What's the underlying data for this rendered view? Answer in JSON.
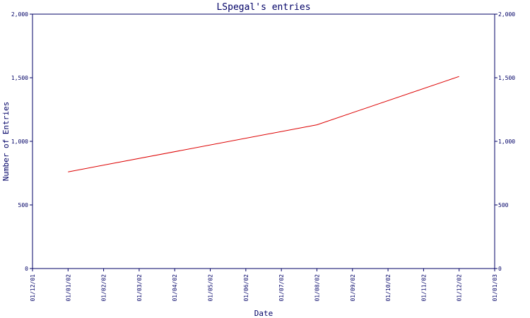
{
  "chart_data": {
    "type": "line",
    "title": "LSpegal's entries",
    "xlabel": "Date",
    "ylabel": "Number of Entries",
    "x_ticks": [
      "01/12/01",
      "01/01/02",
      "01/02/02",
      "01/03/02",
      "01/04/02",
      "01/05/02",
      "01/06/02",
      "01/07/02",
      "01/08/02",
      "01/09/02",
      "01/10/02",
      "01/11/02",
      "01/12/02",
      "01/01/03"
    ],
    "y_ticks": [
      "0",
      "500",
      "1,000",
      "1,500",
      "2,000"
    ],
    "ylim": [
      0,
      2000
    ],
    "grid": false,
    "colors": {
      "axis": "#000066",
      "text": "#000066",
      "line": "#dd0000"
    },
    "series": [
      {
        "x": [
          "01/01/02",
          "01/08/02",
          "01/12/02"
        ],
        "values": [
          760,
          1130,
          1510
        ]
      }
    ]
  }
}
